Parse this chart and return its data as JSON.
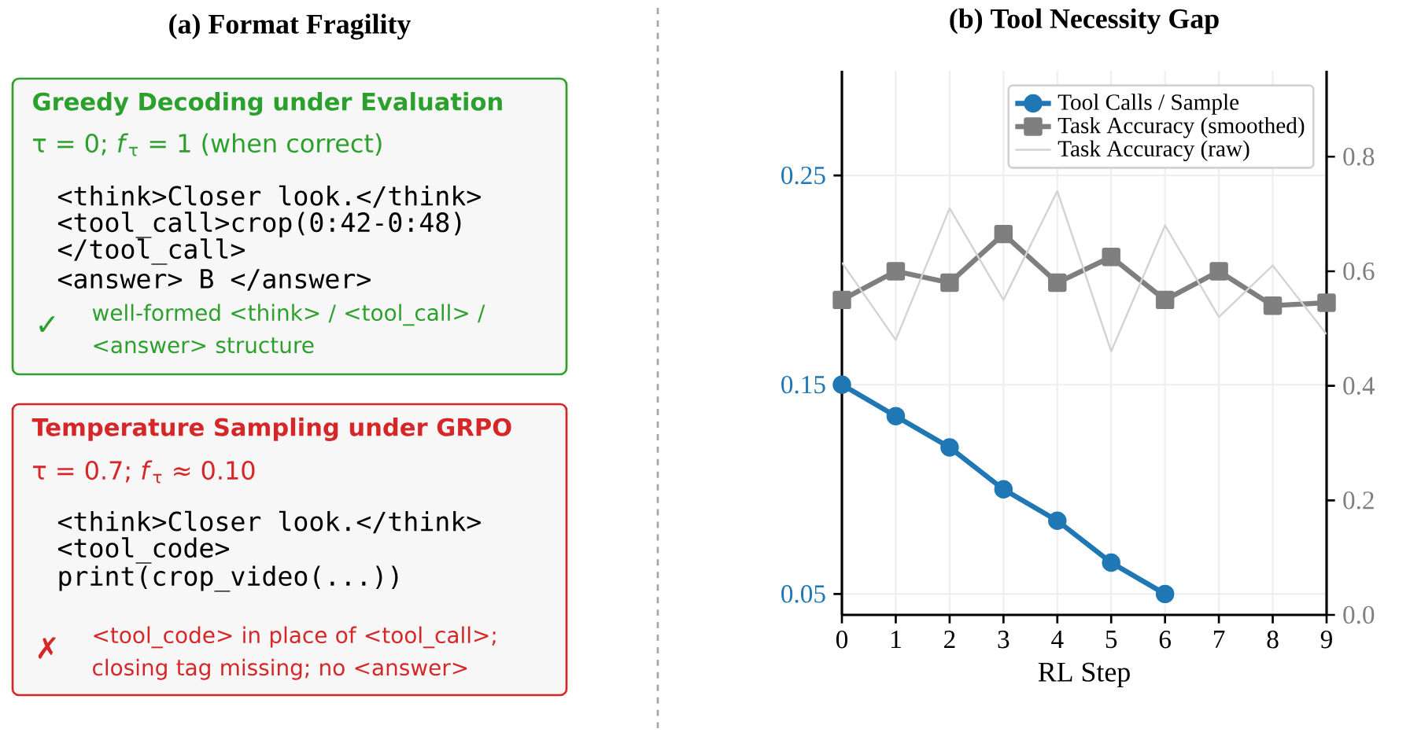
{
  "chart_data": [
    {
      "type": "other",
      "title": "(a) Format Fragility",
      "annotations": [
        "Greedy Decoding under Evaluation",
        "τ = 0;  *f*$_{τ}$ = 1 (when correct)",
        "<think>Closer look.</think>",
        "<tool_call>crop(0:42-0:48)",
        "</tool_call>",
        "<answer> B </answer>",
        "✓",
        "well-formed <think> / <tool_call> / <answer> structure",
        "Temperature Sampling under GRPO",
        "τ = 0.7;  *f*$_{τ}$ ≈ 0.10",
        "<think>Closer look.</think>",
        "<tool_code>",
        "print(crop_video(...))",
        "✗",
        "<tool_code> in place of <tool_call>; closing tag missing; no <answer>"
      ]
    },
    {
      "type": "line",
      "title": "(b) Tool Necessity Gap",
      "xlabel": "RL Step",
      "x": [
        0,
        1,
        2,
        3,
        4,
        5,
        6,
        7,
        8,
        9
      ],
      "series": [
        {
          "name": "Tool Calls / Sample",
          "color": "#1f77b4",
          "marker": "circle",
          "values": [
            0.15,
            0.135,
            0.12,
            0.1,
            0.085,
            0.065,
            0.05,
            null,
            null,
            null
          ]
        },
        {
          "name": "Task Accuracy (smoothed)",
          "color": "#7f7f7f",
          "marker": "square",
          "axis": "y2",
          "values": [
            0.55,
            0.6,
            0.58,
            0.665,
            0.58,
            0.625,
            0.55,
            0.6,
            0.54,
            0.545
          ]
        },
        {
          "name": "Task Accuracy (raw)",
          "color": "#d3d3d3",
          "marker": "none",
          "axis": "y2",
          "values": [
            0.615,
            0.48,
            0.71,
            0.55,
            0.74,
            0.46,
            0.68,
            0.52,
            0.61,
            0.49
          ]
        }
      ],
      "xlim": [
        0,
        9
      ],
      "xticks": [
        0,
        1,
        2,
        3,
        4,
        5,
        6,
        7,
        8,
        9
      ],
      "ylim": [
        0.04,
        0.3
      ],
      "yticks": [
        0.05,
        0.15,
        0.25
      ],
      "y2lim": [
        0,
        0.95
      ],
      "y2ticks": [
        {
          "value": 0,
          "label": "0.0"
        },
        0.2,
        0.4,
        0.6,
        0.8
      ],
      "grid": true,
      "legend": "top right"
    }
  ]
}
